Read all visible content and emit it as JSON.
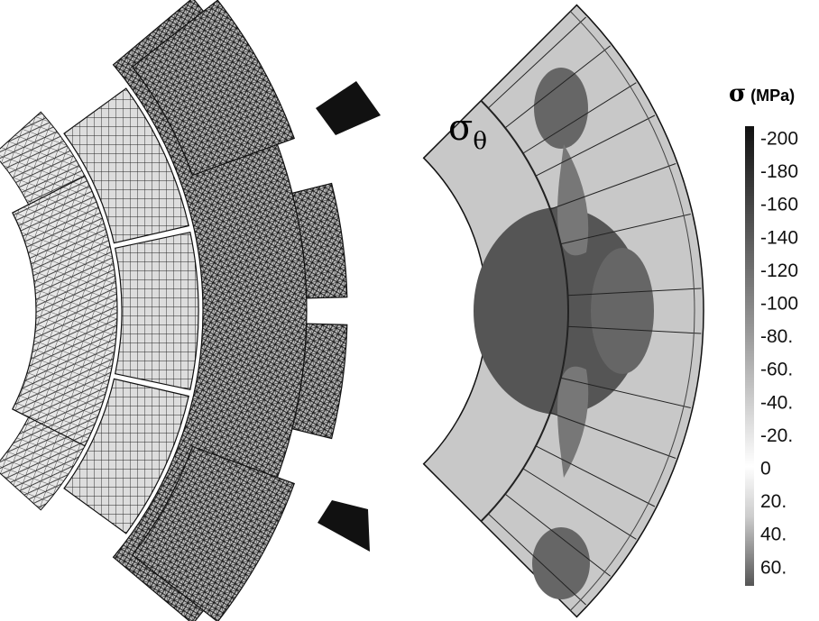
{
  "stress_plot": {
    "symbol": "σ",
    "subscript": "θ"
  },
  "colorbar": {
    "symbol": "σ",
    "unit": "(MPa)",
    "labels": [
      "-200",
      "-180",
      "-160",
      "-140",
      "-120",
      "-100",
      "-80.",
      "-60.",
      "-40.",
      "-20.",
      "0",
      "20.",
      "40.",
      "60."
    ]
  }
}
